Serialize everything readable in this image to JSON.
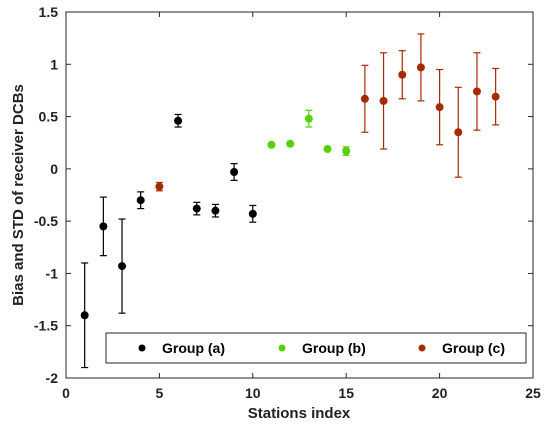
{
  "colors": {
    "group_a": "#000000",
    "group_b": "#55d000",
    "group_c": "#a52a00",
    "axis": "#262626",
    "background": "#ffffff"
  },
  "chart_data": {
    "type": "scatter",
    "xlabel": "Stations index",
    "ylabel": "Bias and STD of receiver DCBs",
    "xlim": [
      0,
      25
    ],
    "ylim": [
      -2,
      1.5
    ],
    "xticks": [
      "0",
      "5",
      "10",
      "15",
      "20",
      "25"
    ],
    "yticks": [
      "-2",
      "-1.5",
      "-1",
      "-0.5",
      "0",
      "0.5",
      "1",
      "1.5"
    ],
    "grid": false,
    "legend_position": "bottom",
    "series": [
      {
        "name": "Group (a)",
        "color": "#000000",
        "points": [
          {
            "x": 1,
            "y": -1.4,
            "err": 0.5
          },
          {
            "x": 2,
            "y": -0.55,
            "err": 0.28
          },
          {
            "x": 3,
            "y": -0.93,
            "err": 0.45
          },
          {
            "x": 4,
            "y": -0.3,
            "err": 0.08
          },
          {
            "x": 6,
            "y": 0.46,
            "err": 0.06
          },
          {
            "x": 7,
            "y": -0.38,
            "err": 0.06
          },
          {
            "x": 8,
            "y": -0.4,
            "err": 0.06
          },
          {
            "x": 9,
            "y": -0.03,
            "err": 0.08
          },
          {
            "x": 10,
            "y": -0.43,
            "err": 0.08
          }
        ]
      },
      {
        "name": "Group (b)",
        "color": "#55d000",
        "points": [
          {
            "x": 11,
            "y": 0.23,
            "err": 0.0
          },
          {
            "x": 12,
            "y": 0.24,
            "err": 0.0
          },
          {
            "x": 13,
            "y": 0.48,
            "err": 0.08
          },
          {
            "x": 14,
            "y": 0.19,
            "err": 0.0
          },
          {
            "x": 15,
            "y": 0.17,
            "err": 0.04
          }
        ]
      },
      {
        "name": "Group (c)",
        "color": "#a52a00",
        "points": [
          {
            "x": 5,
            "y": -0.17,
            "err": 0.04
          },
          {
            "x": 16,
            "y": 0.67,
            "err": 0.32
          },
          {
            "x": 17,
            "y": 0.65,
            "err": 0.46
          },
          {
            "x": 18,
            "y": 0.9,
            "err": 0.23
          },
          {
            "x": 19,
            "y": 0.97,
            "err": 0.32
          },
          {
            "x": 20,
            "y": 0.59,
            "err": 0.36
          },
          {
            "x": 21,
            "y": 0.35,
            "err": 0.43
          },
          {
            "x": 22,
            "y": 0.74,
            "err": 0.37
          },
          {
            "x": 23,
            "y": 0.69,
            "err": 0.27
          }
        ]
      }
    ]
  }
}
